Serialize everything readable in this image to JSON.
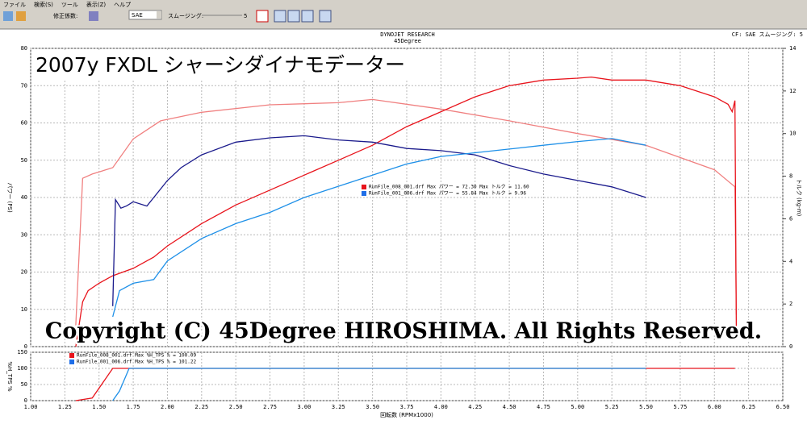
{
  "toolbar": {
    "menu": [
      "ファイル",
      "検索(S)",
      "ツール",
      "表示(Z)",
      "ヘルプ"
    ],
    "correction_label": "修正係数:",
    "correction_value": "SAE",
    "smoothing_label": "スムージング:",
    "smoothing_value": "5"
  },
  "header": {
    "center_title": "DYNOJET RESEARCH",
    "center_subtitle": "45Degree",
    "right_info": "CF: SAE  スムージング: 5"
  },
  "overlay": {
    "title": "2007y FXDL シャーシダイナモデーター",
    "copyright": "Copyright (C) 45Degree HIROSHIMA. All Rights Reserved."
  },
  "chart_data": [
    {
      "type": "line",
      "y_label": "パワー (PS)",
      "y2_label": "トルク (kg-m)",
      "xlim": [
        1.0,
        6.5
      ],
      "ylim": [
        0,
        80
      ],
      "yticks": [
        0,
        10,
        20,
        30,
        40,
        50,
        60,
        70,
        80
      ],
      "y2lim": [
        0,
        14
      ],
      "y2ticks": [
        0,
        2,
        4,
        6,
        8,
        10,
        12,
        14
      ],
      "grid": true,
      "legend_entries": [
        {
          "text": "RunFile_008_001.drf Max パワー = 72.30  Max トルク = 11.60",
          "color": "#e8141c"
        },
        {
          "text": "RunFile_001_006.drf Max パワー = 55.84  Max トルク = 9.96",
          "color": "#1e6ee8"
        }
      ],
      "series": [
        {
          "color": "#f08080",
          "axis": "y2",
          "x": [
            1.33,
            1.38,
            1.45,
            1.6,
            1.75,
            1.95,
            2.25,
            2.75,
            3.25,
            3.5,
            4.0,
            4.5,
            5.0,
            5.5,
            6.0,
            6.15,
            6.16
          ],
          "values": [
            1,
            7.9,
            8.1,
            8.4,
            9.75,
            10.6,
            11.0,
            11.35,
            11.45,
            11.6,
            11.15,
            10.6,
            10.0,
            9.45,
            8.3,
            7.5,
            1.5
          ]
        },
        {
          "color": "#e8141c",
          "x": [
            1.33,
            1.38,
            1.42,
            1.5,
            1.6,
            1.75,
            1.9,
            2.0,
            2.25,
            2.5,
            2.75,
            3.0,
            3.25,
            3.5,
            3.75,
            4.0,
            4.25,
            4.5,
            4.75,
            5.0,
            5.1,
            5.25,
            5.5,
            5.75,
            6.0,
            6.1,
            6.13,
            6.15,
            6.16
          ],
          "values": [
            0,
            12,
            15,
            17,
            19,
            21,
            24,
            27,
            33,
            38,
            42,
            46,
            50,
            54,
            59,
            63,
            67,
            70,
            71.5,
            72,
            72.3,
            71.5,
            71.5,
            70,
            67,
            65,
            63,
            66,
            5
          ]
        },
        {
          "color": "#1a1a8c",
          "axis": "y2",
          "x": [
            1.6,
            1.62,
            1.66,
            1.7,
            1.75,
            1.85,
            2.0,
            2.1,
            2.25,
            2.5,
            2.75,
            3.0,
            3.25,
            3.5,
            3.75,
            4.0,
            4.25,
            4.5,
            4.75,
            5.0,
            5.25,
            5.5
          ],
          "values": [
            1.9,
            6.9,
            6.5,
            6.6,
            6.8,
            6.6,
            7.8,
            8.4,
            9.0,
            9.6,
            9.8,
            9.9,
            9.7,
            9.6,
            9.3,
            9.2,
            9.0,
            8.5,
            8.1,
            7.8,
            7.5,
            7.0
          ]
        },
        {
          "color": "#1e90e8",
          "x": [
            1.6,
            1.65,
            1.75,
            1.9,
            2.0,
            2.25,
            2.5,
            2.75,
            3.0,
            3.25,
            3.5,
            3.75,
            4.0,
            4.25,
            4.5,
            4.75,
            5.0,
            5.25,
            5.5
          ],
          "values": [
            8,
            15,
            17,
            18,
            23,
            29,
            33,
            36,
            40,
            43,
            46,
            49,
            51,
            52,
            53,
            54,
            55,
            55.8,
            54
          ]
        }
      ]
    },
    {
      "type": "line",
      "y_label": "%H_TPS %",
      "x_label": "回転数 (RPMx1000)",
      "xlim": [
        1.0,
        6.5
      ],
      "ylim": [
        0,
        150
      ],
      "yticks": [
        0,
        50,
        100,
        150
      ],
      "grid": true,
      "xticks": [
        {
          "value": 1.0,
          "label": "1.00"
        },
        {
          "value": 1.25,
          "label": "1.25"
        },
        {
          "value": 1.5,
          "label": "1.50"
        },
        {
          "value": 1.75,
          "label": "1.75"
        },
        {
          "value": 2.0,
          "label": "2.00"
        },
        {
          "value": 2.25,
          "label": "2.25"
        },
        {
          "value": 2.5,
          "label": "2.50"
        },
        {
          "value": 2.75,
          "label": "2.75"
        },
        {
          "value": 3.0,
          "label": "3.00"
        },
        {
          "value": 3.25,
          "label": "3.25"
        },
        {
          "value": 3.5,
          "label": "3.50"
        },
        {
          "value": 3.75,
          "label": "3.75"
        },
        {
          "value": 4.0,
          "label": "4.00"
        },
        {
          "value": 4.25,
          "label": "4.25"
        },
        {
          "value": 4.5,
          "label": "4.50"
        },
        {
          "value": 4.75,
          "label": "4.75"
        },
        {
          "value": 5.0,
          "label": "5.00"
        },
        {
          "value": 5.25,
          "label": "5.25"
        },
        {
          "value": 5.5,
          "label": "5.50"
        },
        {
          "value": 5.75,
          "label": "5.75"
        },
        {
          "value": 6.0,
          "label": "6.00"
        },
        {
          "value": 6.25,
          "label": "6.25"
        },
        {
          "value": 6.5,
          "label": "6.50"
        }
      ],
      "legend_entries": [
        {
          "text": "RunFile_008_001.drf Max %H_TPS % = 100.09",
          "color": "#e8141c"
        },
        {
          "text": "RunFile_001_006.drf Max %H_TPS % = 101.22",
          "color": "#1e6ee8"
        }
      ],
      "series": [
        {
          "color": "#e8141c",
          "x": [
            1.33,
            1.45,
            1.6,
            6.15
          ],
          "values": [
            0,
            8,
            100,
            100
          ]
        },
        {
          "color": "#1e90e8",
          "x": [
            1.6,
            1.65,
            1.72,
            5.5
          ],
          "values": [
            0,
            30,
            100,
            100
          ]
        }
      ]
    }
  ]
}
